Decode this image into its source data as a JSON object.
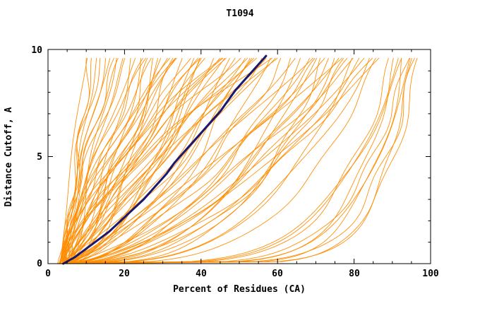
{
  "title": "T1094",
  "chart_data": {
    "type": "line",
    "title": "T1094",
    "xlabel": "Percent of Residues (CA)",
    "ylabel": "Distance Cutoff, A",
    "xlim": [
      0,
      100
    ],
    "ylim": [
      0,
      10
    ],
    "x_tick_labels": [
      "0",
      "20",
      "40",
      "60",
      "80",
      "100"
    ],
    "x_major_ticks": [
      0,
      20,
      40,
      60,
      80,
      100
    ],
    "x_minor_step": 5,
    "y_tick_labels": [
      "0",
      "5",
      "10"
    ],
    "y_major_ticks": [
      0,
      5,
      10
    ],
    "y_minor_step": 1,
    "grid": "off",
    "legend": "none",
    "colors": {
      "ensemble": "#ff8c00",
      "highlight": "#191970",
      "axis": "#000000",
      "background": "#ffffff"
    },
    "highlight_series": {
      "name": "selected-model-curve",
      "points": [
        [
          4,
          0
        ],
        [
          7,
          0.3
        ],
        [
          10,
          0.7
        ],
        [
          13,
          1.1
        ],
        [
          16,
          1.5
        ],
        [
          19,
          2.0
        ],
        [
          22,
          2.5
        ],
        [
          25,
          3.0
        ],
        [
          28,
          3.6
        ],
        [
          31,
          4.2
        ],
        [
          33,
          4.7
        ],
        [
          36,
          5.3
        ],
        [
          39,
          5.9
        ],
        [
          42,
          6.5
        ],
        [
          45,
          7.1
        ],
        [
          47,
          7.6
        ],
        [
          49,
          8.1
        ],
        [
          52,
          8.7
        ],
        [
          54,
          9.1
        ],
        [
          56,
          9.5
        ],
        [
          57,
          9.7
        ]
      ]
    },
    "ensemble": {
      "name": "model-ensemble-curves",
      "x_start_percent": 4,
      "y_top_cutoff": 9.65,
      "curve_format": "[percent_at_top_cutoff, shape_exponent]",
      "curves": [
        [
          10,
          1.2
        ],
        [
          11,
          0.9
        ],
        [
          12,
          1.5
        ],
        [
          13,
          1.1
        ],
        [
          14,
          1.7
        ],
        [
          15,
          1.0
        ],
        [
          16,
          1.4
        ],
        [
          17,
          0.8
        ],
        [
          18,
          1.3
        ],
        [
          19,
          1.6
        ],
        [
          20,
          1.0
        ],
        [
          21,
          1.45
        ],
        [
          22,
          0.7
        ],
        [
          23,
          1.2
        ],
        [
          24,
          0.55
        ],
        [
          25,
          1.0
        ],
        [
          26,
          1.5
        ],
        [
          27,
          0.8
        ],
        [
          28,
          1.3
        ],
        [
          28,
          0.45
        ],
        [
          29,
          0.6
        ],
        [
          30,
          1.1
        ],
        [
          31,
          0.9
        ],
        [
          32,
          1.4
        ],
        [
          33,
          0.65
        ],
        [
          34,
          1.05
        ],
        [
          34,
          1.6
        ],
        [
          35,
          1.55
        ],
        [
          36,
          0.75
        ],
        [
          37,
          1.2
        ],
        [
          38,
          0.5
        ],
        [
          39,
          0.95
        ],
        [
          40,
          1.35
        ],
        [
          40,
          0.5
        ],
        [
          41,
          0.7
        ],
        [
          42,
          1.15
        ],
        [
          43,
          0.6
        ],
        [
          44,
          1.0
        ],
        [
          45,
          1.5
        ],
        [
          46,
          0.8
        ],
        [
          46,
          1.45
        ],
        [
          47,
          1.25
        ],
        [
          48,
          0.55
        ],
        [
          49,
          0.9
        ],
        [
          50,
          1.4
        ],
        [
          51,
          0.7
        ],
        [
          52,
          1.1
        ],
        [
          52,
          0.48
        ],
        [
          53,
          0.6
        ],
        [
          54,
          0.95
        ],
        [
          55,
          1.3
        ],
        [
          56,
          0.75
        ],
        [
          57,
          1.05
        ],
        [
          58,
          0.5
        ],
        [
          58,
          1.5
        ],
        [
          59,
          0.85
        ],
        [
          60,
          1.2
        ],
        [
          62,
          0.6
        ],
        [
          64,
          0.45
        ],
        [
          65,
          0.8
        ],
        [
          66,
          0.35
        ],
        [
          68,
          0.55
        ],
        [
          69,
          0.9
        ],
        [
          70,
          0.4
        ],
        [
          71,
          0.65
        ],
        [
          72,
          0.3
        ],
        [
          73,
          0.75
        ],
        [
          74,
          0.5
        ],
        [
          75,
          0.35
        ],
        [
          76,
          0.6
        ],
        [
          77,
          0.85
        ],
        [
          78,
          0.4
        ],
        [
          79,
          0.55
        ],
        [
          80,
          0.3
        ],
        [
          81,
          0.7
        ],
        [
          82,
          0.45
        ],
        [
          83,
          0.6
        ],
        [
          84,
          0.35
        ],
        [
          85,
          0.5
        ],
        [
          86,
          0.28
        ],
        [
          87,
          0.6
        ],
        [
          90,
          0.18
        ],
        [
          91,
          0.14
        ],
        [
          92,
          0.2
        ],
        [
          93,
          0.12
        ],
        [
          94,
          0.16
        ],
        [
          95,
          0.1
        ],
        [
          96,
          0.13
        ],
        [
          97,
          0.11
        ],
        [
          93,
          0.22
        ],
        [
          95,
          0.15
        ]
      ]
    }
  }
}
